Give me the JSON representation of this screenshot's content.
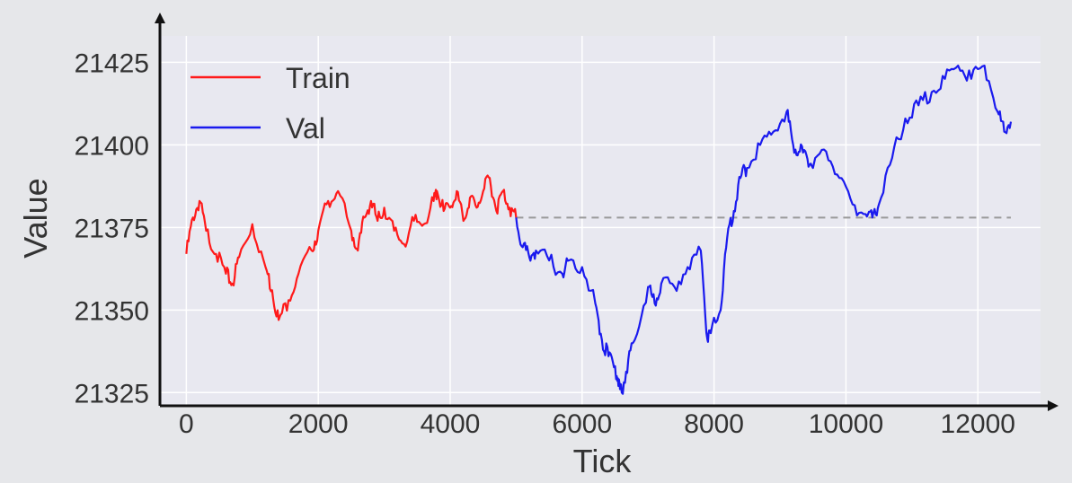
{
  "chart_data": {
    "type": "line",
    "title": "",
    "xlabel": "Tick",
    "ylabel": "Value",
    "xlim": [
      -400,
      12950
    ],
    "ylim": [
      21321,
      21433
    ],
    "xticks": [
      0,
      2000,
      4000,
      6000,
      8000,
      10000,
      12000
    ],
    "yticks": [
      21325,
      21350,
      21375,
      21400,
      21425
    ],
    "xtick_labels": [
      "0",
      "2000",
      "4000",
      "6000",
      "8000",
      "10000",
      "12000"
    ],
    "ytick_labels": [
      "21325",
      "21350",
      "21375",
      "21400",
      "21425"
    ],
    "grid": true,
    "legend_position": "top-left",
    "colors": {
      "train": "#ff1a1a",
      "val": "#1a1aee",
      "reference": "#999999",
      "plot_background": "#e8e8f0",
      "grid": "#ffffff",
      "axis": "#111111"
    },
    "series": [
      {
        "name": "Train",
        "x": [
          0,
          100,
          200,
          300,
          450,
          600,
          700,
          800,
          1000,
          1200,
          1300,
          1400,
          1550,
          1700,
          1900,
          2000,
          2150,
          2300,
          2500,
          2600,
          2700,
          2800,
          2900,
          3000,
          3150,
          3300,
          3450,
          3600,
          3750,
          3800,
          3900,
          4000,
          4100,
          4200,
          4300,
          4400,
          4500,
          4600,
          4700,
          4800,
          4900,
          5000
        ],
        "values": [
          21367,
          21378,
          21383,
          21374,
          21367,
          21361,
          21358,
          21366,
          21376,
          21363,
          21356,
          21347,
          21353,
          21361,
          21368,
          21374,
          21383,
          21386,
          21374,
          21368,
          21378,
          21383,
          21377,
          21381,
          21374,
          21370,
          21377,
          21376,
          21383,
          21386,
          21380,
          21381,
          21386,
          21377,
          21384,
          21381,
          21386,
          21390,
          21380,
          21386,
          21381,
          21378
        ]
      },
      {
        "name": "Val",
        "x": [
          5000,
          5100,
          5200,
          5300,
          5500,
          5700,
          5800,
          6000,
          6200,
          6300,
          6400,
          6500,
          6550,
          6600,
          6700,
          6800,
          7000,
          7100,
          7200,
          7400,
          7600,
          7800,
          7900,
          7950,
          8100,
          8200,
          8300,
          8400,
          8500,
          8700,
          8900,
          9100,
          9200,
          9300,
          9400,
          9500,
          9700,
          9900,
          10100,
          10300,
          10400,
          10500,
          10700,
          10900,
          11100,
          11300,
          11500,
          11700,
          11900,
          12100,
          12300,
          12400,
          12500
        ],
        "values": [
          21378,
          21369,
          21366,
          21368,
          21365,
          21361,
          21365,
          21363,
          21352,
          21341,
          21336,
          21333,
          21327,
          21325,
          21335,
          21341,
          21357,
          21352,
          21358,
          21357,
          21363,
          21368,
          21341,
          21343,
          21350,
          21372,
          21380,
          21390,
          21393,
          21400,
          21404,
          21410,
          21400,
          21398,
          21397,
          21393,
          21398,
          21390,
          21382,
          21379,
          21378,
          21382,
          21396,
          21408,
          21412,
          21416,
          21420,
          21424,
          21420,
          21424,
          21410,
          21404,
          21407
        ]
      }
    ],
    "reference_line": {
      "y": 21378,
      "x_start": 5000,
      "x_end": 12500,
      "style": "dashed"
    }
  }
}
